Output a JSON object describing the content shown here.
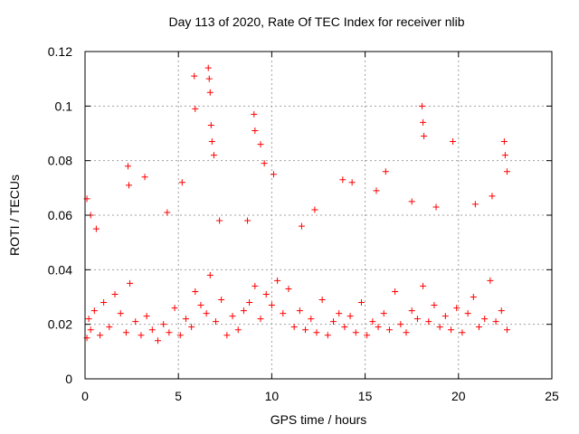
{
  "chart_data": {
    "type": "scatter",
    "title": "Day 113 of 2020, Rate Of TEC Index for receiver nlib",
    "xlabel": "GPS time / hours",
    "ylabel": "ROTI / TECUs",
    "xlim": [
      0,
      25
    ],
    "ylim": [
      0,
      0.12
    ],
    "xticks": [
      "0",
      "5",
      "10",
      "15",
      "20",
      "25"
    ],
    "yticks": [
      "0",
      "0.02",
      "0.04",
      "0.06",
      "0.08",
      "0.1",
      "0.12"
    ],
    "grid": true,
    "marker": "plus",
    "color": "#ff0000",
    "series": [
      {
        "x": [
          0.1,
          0.2,
          0.3,
          0.5,
          0.8,
          1.0,
          1.3,
          1.6,
          1.9,
          2.2,
          2.4,
          2.7,
          3.0,
          3.3,
          3.6,
          3.9,
          4.2,
          4.5,
          4.8,
          5.1,
          5.4,
          5.7,
          5.9,
          6.2,
          6.5,
          6.7,
          7.0,
          7.3,
          7.6,
          7.9,
          8.2,
          8.5,
          8.8,
          9.1,
          9.4,
          9.7,
          10.0,
          10.3,
          10.6,
          10.9,
          11.2,
          11.5,
          11.8,
          12.1,
          12.4,
          12.7,
          13.0,
          13.3,
          13.6,
          13.9,
          14.2,
          14.5,
          14.8,
          15.1,
          15.4,
          15.7,
          16.0,
          16.3,
          16.6,
          16.9,
          17.2,
          17.5,
          17.8,
          18.1,
          18.4,
          18.7,
          19.0,
          19.3,
          19.6,
          19.9,
          20.2,
          20.5,
          20.8,
          21.1,
          21.4,
          21.7,
          22.0,
          22.3,
          22.6,
          0.1,
          0.3,
          0.6,
          2.3,
          2.35,
          3.2,
          5.85,
          5.9,
          6.6,
          6.65,
          6.7,
          6.75,
          6.8,
          6.9,
          9.05,
          9.1,
          9.4,
          9.6,
          18.05,
          18.1,
          18.15,
          19.7,
          22.45,
          22.5,
          22.6,
          13.8,
          16.1,
          5.2,
          12.3,
          20.9,
          17.5,
          18.8,
          14.3,
          10.1,
          8.7,
          11.6,
          21.8,
          4.4,
          7.2,
          15.6
        ],
        "y": [
          0.015,
          0.022,
          0.018,
          0.025,
          0.016,
          0.028,
          0.019,
          0.031,
          0.024,
          0.017,
          0.035,
          0.021,
          0.016,
          0.023,
          0.018,
          0.014,
          0.02,
          0.017,
          0.026,
          0.016,
          0.022,
          0.019,
          0.032,
          0.027,
          0.024,
          0.038,
          0.021,
          0.029,
          0.016,
          0.023,
          0.018,
          0.025,
          0.028,
          0.034,
          0.022,
          0.031,
          0.027,
          0.036,
          0.024,
          0.033,
          0.019,
          0.025,
          0.018,
          0.022,
          0.017,
          0.029,
          0.016,
          0.021,
          0.024,
          0.019,
          0.023,
          0.017,
          0.028,
          0.016,
          0.021,
          0.019,
          0.024,
          0.018,
          0.032,
          0.02,
          0.017,
          0.025,
          0.022,
          0.034,
          0.021,
          0.027,
          0.019,
          0.023,
          0.018,
          0.026,
          0.017,
          0.024,
          0.03,
          0.019,
          0.022,
          0.036,
          0.021,
          0.025,
          0.018,
          0.066,
          0.06,
          0.055,
          0.078,
          0.071,
          0.074,
          0.111,
          0.099,
          0.114,
          0.11,
          0.105,
          0.093,
          0.087,
          0.082,
          0.097,
          0.091,
          0.086,
          0.079,
          0.1,
          0.094,
          0.089,
          0.087,
          0.087,
          0.082,
          0.076,
          0.073,
          0.076,
          0.072,
          0.062,
          0.064,
          0.065,
          0.063,
          0.072,
          0.075,
          0.058,
          0.056,
          0.067,
          0.061,
          0.058,
          0.069
        ]
      }
    ]
  }
}
